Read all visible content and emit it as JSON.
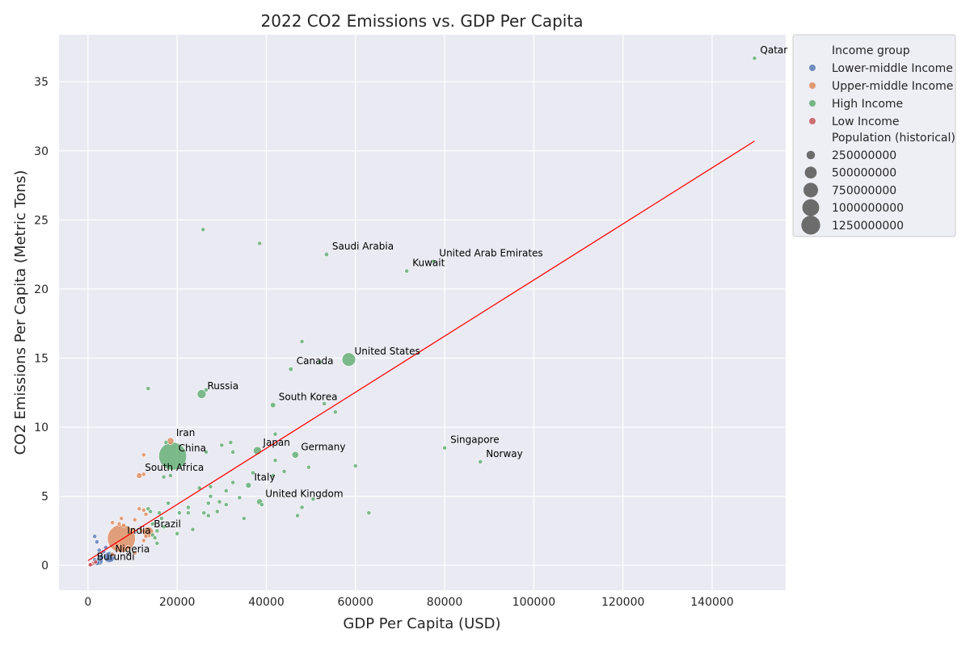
{
  "chart_data": {
    "type": "scatter",
    "title": "2022 CO2 Emissions vs. GDP Per Capita",
    "xlabel": "GDP Per Capita (USD)",
    "ylabel": "CO2 Emissions Per Capita (Metric Tons)",
    "xlim": [
      -6500,
      156500
    ],
    "ylim": [
      -1.8,
      38.4
    ],
    "xticks": [
      0,
      20000,
      40000,
      60000,
      80000,
      100000,
      120000,
      140000
    ],
    "yticks": [
      0,
      5,
      10,
      15,
      20,
      25,
      30,
      35
    ],
    "grid": true,
    "legend_position": "outside-top-right",
    "legend_hue_title": "Income group",
    "legend_size_title": "Population (historical)",
    "groups": [
      {
        "name": "Lower-middle Income",
        "color": "#4c72b0"
      },
      {
        "name": "Upper-middle Income",
        "color": "#dd8452"
      },
      {
        "name": "High Income",
        "color": "#55a868"
      },
      {
        "name": "Low Income",
        "color": "#c44e52"
      }
    ],
    "size_legend": [
      250000000,
      500000000,
      750000000,
      1000000000,
      1250000000
    ],
    "regression_line": {
      "color": "#ff0000",
      "x": [
        0,
        149500
      ],
      "y": [
        0.35,
        30.7
      ]
    },
    "labeled_points": [
      {
        "label": "Qatar",
        "group": "High Income",
        "x": 149500,
        "y": 36.7,
        "pop": 2700000
      },
      {
        "label": "Saudi Arabia",
        "group": "High Income",
        "x": 53500,
        "y": 22.5,
        "pop": 36000000
      },
      {
        "label": "United Arab Emirates",
        "group": "High Income",
        "x": 77500,
        "y": 22.0,
        "pop": 9400000
      },
      {
        "label": "Kuwait",
        "group": "High Income",
        "x": 71500,
        "y": 21.3,
        "pop": 4300000
      },
      {
        "label": "United States",
        "group": "High Income",
        "x": 58500,
        "y": 14.9,
        "pop": 333000000
      },
      {
        "label": "Canada",
        "group": "High Income",
        "x": 45500,
        "y": 14.2,
        "pop": 38500000
      },
      {
        "label": "Russia",
        "group": "High Income",
        "x": 25500,
        "y": 12.4,
        "pop": 144000000
      },
      {
        "label": "South Korea",
        "group": "High Income",
        "x": 41500,
        "y": 11.6,
        "pop": 51700000
      },
      {
        "label": "Iran",
        "group": "Upper-middle Income",
        "x": 18500,
        "y": 9.0,
        "pop": 88500000
      },
      {
        "label": "China",
        "group": "High Income",
        "x": 19000,
        "y": 7.9,
        "pop": 1412000000
      },
      {
        "label": "Japan",
        "group": "High Income",
        "x": 38000,
        "y": 8.3,
        "pop": 125000000
      },
      {
        "label": "Germany",
        "group": "High Income",
        "x": 46500,
        "y": 8.0,
        "pop": 83800000
      },
      {
        "label": "Singapore",
        "group": "High Income",
        "x": 80000,
        "y": 8.5,
        "pop": 5600000
      },
      {
        "label": "Norway",
        "group": "High Income",
        "x": 88000,
        "y": 7.5,
        "pop": 5400000
      },
      {
        "label": "South Africa",
        "group": "Upper-middle Income",
        "x": 11500,
        "y": 6.5,
        "pop": 59900000
      },
      {
        "label": "Italy",
        "group": "High Income",
        "x": 36000,
        "y": 5.8,
        "pop": 59000000
      },
      {
        "label": "United Kingdom",
        "group": "High Income",
        "x": 38500,
        "y": 4.6,
        "pop": 67000000
      },
      {
        "label": "Brazil",
        "group": "Upper-middle Income",
        "x": 13500,
        "y": 2.4,
        "pop": 215000000
      },
      {
        "label": "India",
        "group": "Upper-middle Income",
        "x": 7500,
        "y": 1.95,
        "pop": 1417000000
      },
      {
        "label": "Nigeria",
        "group": "Lower-middle Income",
        "x": 4800,
        "y": 0.6,
        "pop": 218000000
      },
      {
        "label": "Burundi",
        "group": "Low Income",
        "x": 700,
        "y": 0.05,
        "pop": 12900000
      }
    ],
    "points": [
      {
        "group": "High Income",
        "x": 25800,
        "y": 24.3,
        "pop": 3000000
      },
      {
        "group": "High Income",
        "x": 38500,
        "y": 23.3,
        "pop": 3000000
      },
      {
        "group": "High Income",
        "x": 48000,
        "y": 16.2,
        "pop": 4000000
      },
      {
        "group": "High Income",
        "x": 52000,
        "y": 14.7,
        "pop": 4000000
      },
      {
        "group": "High Income",
        "x": 13500,
        "y": 12.8,
        "pop": 3000000
      },
      {
        "group": "High Income",
        "x": 26500,
        "y": 12.7,
        "pop": 3000000
      },
      {
        "group": "High Income",
        "x": 53000,
        "y": 11.7,
        "pop": 5000000
      },
      {
        "group": "High Income",
        "x": 55500,
        "y": 11.1,
        "pop": 3000000
      },
      {
        "group": "High Income",
        "x": 42000,
        "y": 9.5,
        "pop": 3000000
      },
      {
        "group": "High Income",
        "x": 17500,
        "y": 8.9,
        "pop": 4000000
      },
      {
        "group": "High Income",
        "x": 30000,
        "y": 8.7,
        "pop": 4000000
      },
      {
        "group": "High Income",
        "x": 32000,
        "y": 8.9,
        "pop": 5000000
      },
      {
        "group": "High Income",
        "x": 26500,
        "y": 8.2,
        "pop": 10000000
      },
      {
        "group": "High Income",
        "x": 32500,
        "y": 8.2,
        "pop": 10000000
      },
      {
        "group": "High Income",
        "x": 42000,
        "y": 7.6,
        "pop": 5000000
      },
      {
        "group": "High Income",
        "x": 49500,
        "y": 7.1,
        "pop": 8000000
      },
      {
        "group": "High Income",
        "x": 60000,
        "y": 7.2,
        "pop": 3000000
      },
      {
        "group": "High Income",
        "x": 37000,
        "y": 6.7,
        "pop": 5000000
      },
      {
        "group": "High Income",
        "x": 44000,
        "y": 6.8,
        "pop": 4000000
      },
      {
        "group": "High Income",
        "x": 18500,
        "y": 6.5,
        "pop": 5000000
      },
      {
        "group": "High Income",
        "x": 17000,
        "y": 6.4,
        "pop": 4000000
      },
      {
        "group": "High Income",
        "x": 25000,
        "y": 5.6,
        "pop": 3000000
      },
      {
        "group": "High Income",
        "x": 27500,
        "y": 5.7,
        "pop": 4000000
      },
      {
        "group": "High Income",
        "x": 31000,
        "y": 5.4,
        "pop": 3000000
      },
      {
        "group": "High Income",
        "x": 32500,
        "y": 6.0,
        "pop": 3000000
      },
      {
        "group": "High Income",
        "x": 34000,
        "y": 4.9,
        "pop": 10000000
      },
      {
        "group": "High Income",
        "x": 41500,
        "y": 6.5,
        "pop": 4000000
      },
      {
        "group": "High Income",
        "x": 18000,
        "y": 4.5,
        "pop": 10000000
      },
      {
        "group": "High Income",
        "x": 22500,
        "y": 4.2,
        "pop": 5000000
      },
      {
        "group": "High Income",
        "x": 27000,
        "y": 4.5,
        "pop": 4000000
      },
      {
        "group": "High Income",
        "x": 29500,
        "y": 4.6,
        "pop": 5000000
      },
      {
        "group": "High Income",
        "x": 31000,
        "y": 4.4,
        "pop": 4000000
      },
      {
        "group": "High Income",
        "x": 39000,
        "y": 4.4,
        "pop": 10000000
      },
      {
        "group": "High Income",
        "x": 48000,
        "y": 4.2,
        "pop": 4000000
      },
      {
        "group": "High Income",
        "x": 50500,
        "y": 4.8,
        "pop": 4000000
      },
      {
        "group": "High Income",
        "x": 20500,
        "y": 3.8,
        "pop": 3000000
      },
      {
        "group": "High Income",
        "x": 22500,
        "y": 3.8,
        "pop": 4000000
      },
      {
        "group": "High Income",
        "x": 26000,
        "y": 3.8,
        "pop": 5000000
      },
      {
        "group": "High Income",
        "x": 27500,
        "y": 5.0,
        "pop": 10000000
      },
      {
        "group": "High Income",
        "x": 29000,
        "y": 3.9,
        "pop": 5000000
      },
      {
        "group": "High Income",
        "x": 27000,
        "y": 3.6,
        "pop": 4000000
      },
      {
        "group": "High Income",
        "x": 35000,
        "y": 3.4,
        "pop": 3000000
      },
      {
        "group": "High Income",
        "x": 47000,
        "y": 3.6,
        "pop": 4000000
      },
      {
        "group": "High Income",
        "x": 63000,
        "y": 3.8,
        "pop": 4000000
      },
      {
        "group": "High Income",
        "x": 13500,
        "y": 4.1,
        "pop": 10000000
      },
      {
        "group": "High Income",
        "x": 14000,
        "y": 3.9,
        "pop": 5000000
      },
      {
        "group": "High Income",
        "x": 16000,
        "y": 3.8,
        "pop": 15000000
      },
      {
        "group": "High Income",
        "x": 16500,
        "y": 3.4,
        "pop": 10000000
      },
      {
        "group": "High Income",
        "x": 14500,
        "y": 3.0,
        "pop": 4000000
      },
      {
        "group": "High Income",
        "x": 17000,
        "y": 2.8,
        "pop": 4000000
      },
      {
        "group": "High Income",
        "x": 15500,
        "y": 2.5,
        "pop": 5000000
      },
      {
        "group": "High Income",
        "x": 14500,
        "y": 2.2,
        "pop": 10000000
      },
      {
        "group": "High Income",
        "x": 15000,
        "y": 2.0,
        "pop": 8000000
      },
      {
        "group": "High Income",
        "x": 20000,
        "y": 2.3,
        "pop": 4000000
      },
      {
        "group": "High Income",
        "x": 23500,
        "y": 2.6,
        "pop": 5000000
      },
      {
        "group": "High Income",
        "x": 15500,
        "y": 1.6,
        "pop": 4000000
      },
      {
        "group": "Upper-middle Income",
        "x": 12500,
        "y": 8.0,
        "pop": 4000000
      },
      {
        "group": "Upper-middle Income",
        "x": 12500,
        "y": 6.6,
        "pop": 5000000
      },
      {
        "group": "Upper-middle Income",
        "x": 11500,
        "y": 4.1,
        "pop": 4000000
      },
      {
        "group": "Upper-middle Income",
        "x": 12500,
        "y": 4.0,
        "pop": 4000000
      },
      {
        "group": "Upper-middle Income",
        "x": 13000,
        "y": 3.7,
        "pop": 10000000
      },
      {
        "group": "Upper-middle Income",
        "x": 10500,
        "y": 3.3,
        "pop": 4000000
      },
      {
        "group": "Upper-middle Income",
        "x": 7500,
        "y": 3.4,
        "pop": 8000000
      },
      {
        "group": "Upper-middle Income",
        "x": 5500,
        "y": 3.1,
        "pop": 8000000
      },
      {
        "group": "Upper-middle Income",
        "x": 7000,
        "y": 3.0,
        "pop": 5000000
      },
      {
        "group": "Upper-middle Income",
        "x": 8000,
        "y": 2.9,
        "pop": 10000000
      },
      {
        "group": "Upper-middle Income",
        "x": 10000,
        "y": 2.6,
        "pop": 5000000
      },
      {
        "group": "Upper-middle Income",
        "x": 12000,
        "y": 2.5,
        "pop": 10000000
      },
      {
        "group": "Upper-middle Income",
        "x": 13000,
        "y": 2.1,
        "pop": 4000000
      },
      {
        "group": "Upper-middle Income",
        "x": 12500,
        "y": 1.8,
        "pop": 5000000
      },
      {
        "group": "Upper-middle Income",
        "x": 9000,
        "y": 1.3,
        "pop": 10000000
      },
      {
        "group": "Upper-middle Income",
        "x": 10500,
        "y": 0.9,
        "pop": 5000000
      },
      {
        "group": "Upper-middle Income",
        "x": 5500,
        "y": 0.8,
        "pop": 8000000
      },
      {
        "group": "Upper-middle Income",
        "x": 6500,
        "y": 1.5,
        "pop": 10000000
      },
      {
        "group": "Lower-middle Income",
        "x": 1500,
        "y": 2.1,
        "pop": 10000000
      },
      {
        "group": "Lower-middle Income",
        "x": 2000,
        "y": 1.7,
        "pop": 4000000
      },
      {
        "group": "Lower-middle Income",
        "x": 2500,
        "y": 1.1,
        "pop": 10000000
      },
      {
        "group": "Lower-middle Income",
        "x": 3500,
        "y": 1.0,
        "pop": 30000000
      },
      {
        "group": "Lower-middle Income",
        "x": 3000,
        "y": 0.6,
        "pop": 50000000
      },
      {
        "group": "Lower-middle Income",
        "x": 2500,
        "y": 0.3,
        "pop": 110000000
      },
      {
        "group": "Lower-middle Income",
        "x": 2000,
        "y": 0.2,
        "pop": 60000000
      },
      {
        "group": "Lower-middle Income",
        "x": 4000,
        "y": 1.3,
        "pop": 20000000
      },
      {
        "group": "Lower-middle Income",
        "x": 1500,
        "y": 0.4,
        "pop": 15000000
      },
      {
        "group": "Low Income",
        "x": 900,
        "y": 0.1,
        "pop": 20000000
      },
      {
        "group": "Low Income",
        "x": 1200,
        "y": 0.15,
        "pop": 15000000
      },
      {
        "group": "Low Income",
        "x": 500,
        "y": 0.05,
        "pop": 8000000
      },
      {
        "group": "Low Income",
        "x": 1700,
        "y": 0.25,
        "pop": 10000000
      }
    ]
  }
}
